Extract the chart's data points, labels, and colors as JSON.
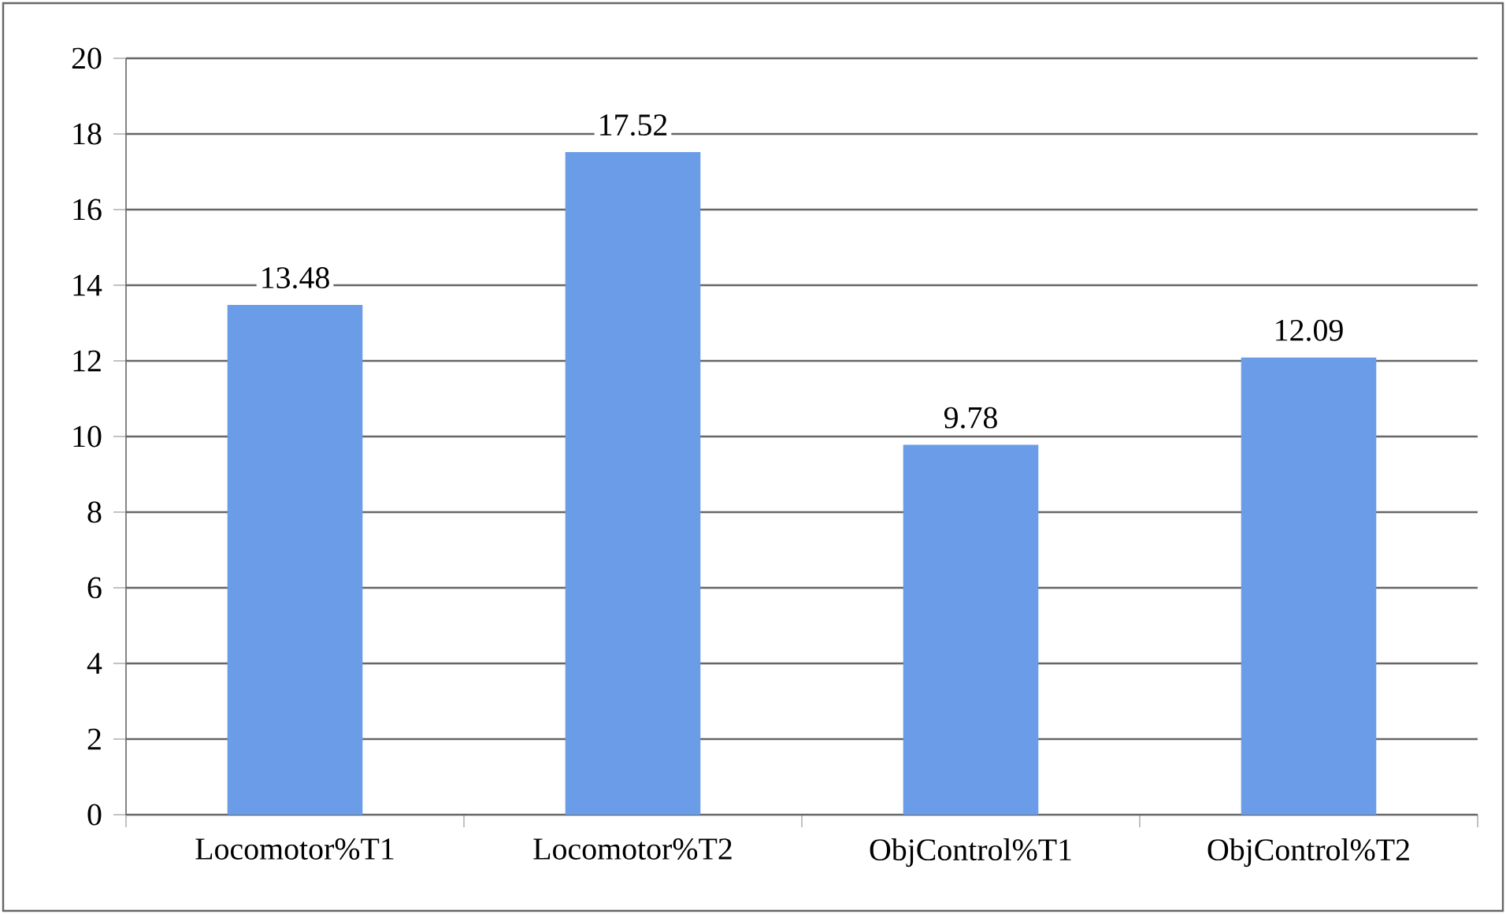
{
  "chart_data": {
    "type": "bar",
    "categories": [
      "Locomotor%T1",
      "Locomotor%T2",
      "ObjControl%T1",
      "ObjControl%T2"
    ],
    "values": [
      13.48,
      17.52,
      9.78,
      12.09
    ],
    "color": "#6a9ce8",
    "ylim": [
      0,
      20
    ],
    "yticks": [
      0,
      2,
      4,
      6,
      8,
      10,
      12,
      14,
      16,
      18,
      20
    ],
    "grid": "y",
    "data_labels": true
  }
}
